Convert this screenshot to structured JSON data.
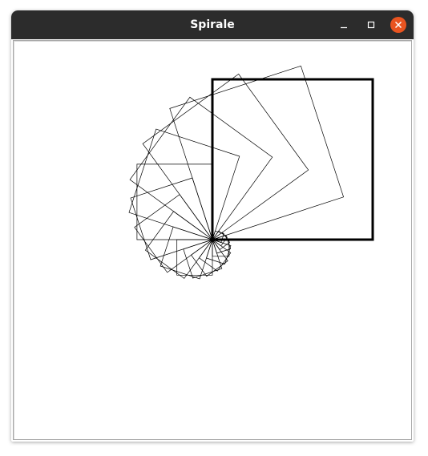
{
  "window": {
    "title": "Spirale"
  },
  "titlebar_buttons": {
    "minimize_icon": "minimize-icon",
    "maximize_icon": "maximize-icon",
    "close_icon": "close-icon",
    "close_color": "#e95420"
  },
  "drawing": {
    "shape": "square",
    "square_count": 20,
    "rotation_step_deg": -18,
    "outline_color": "#000000",
    "highlighted_square": "last"
  }
}
